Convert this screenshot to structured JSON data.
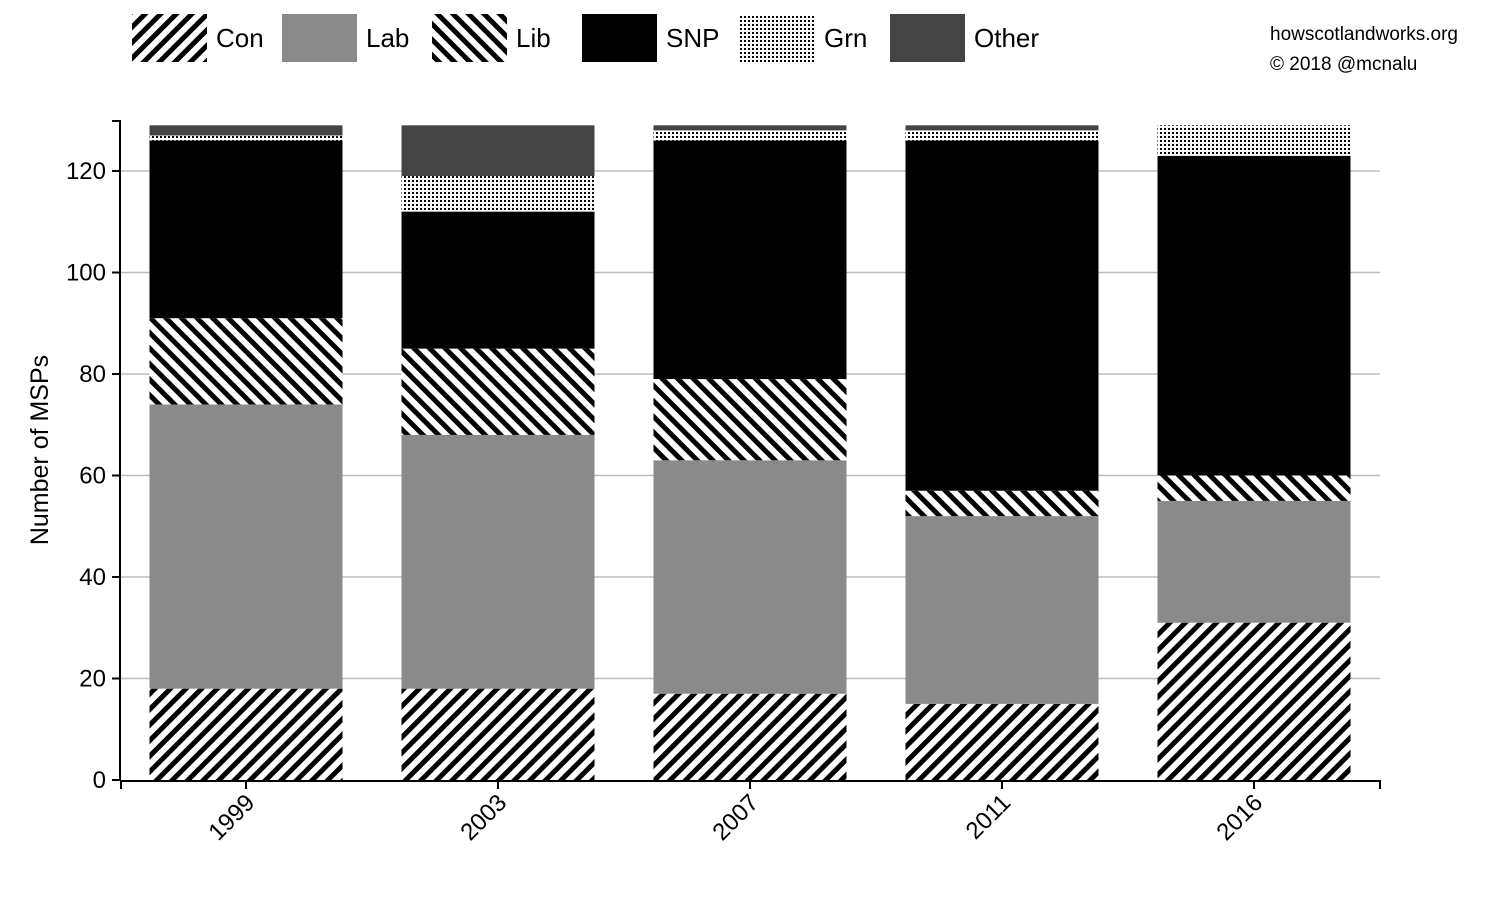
{
  "credit": {
    "site": "howscotlandworks.org",
    "copyright": "© 2018  @mcnalu"
  },
  "chart_data": {
    "type": "bar",
    "stacked": true,
    "title": "",
    "xlabel": "",
    "ylabel": "Number of MSPs",
    "ylim": [
      0,
      130
    ],
    "yticks": [
      0,
      20,
      40,
      60,
      80,
      100,
      120
    ],
    "grid": true,
    "legend_position": "top",
    "categories": [
      "1999",
      "2003",
      "2007",
      "2011",
      "2016"
    ],
    "series": [
      {
        "name": "Con",
        "pattern": "diagonal-hatch-backslash",
        "values": [
          18,
          18,
          17,
          15,
          31
        ]
      },
      {
        "name": "Lab",
        "color": "#8a8a8a",
        "values": [
          56,
          50,
          46,
          37,
          24
        ]
      },
      {
        "name": "Lib",
        "pattern": "diagonal-hatch-slash",
        "values": [
          17,
          17,
          16,
          5,
          5
        ]
      },
      {
        "name": "SNP",
        "color": "#000000",
        "values": [
          35,
          27,
          47,
          69,
          63
        ]
      },
      {
        "name": "Grn",
        "pattern": "dots",
        "values": [
          1,
          7,
          2,
          2,
          6
        ]
      },
      {
        "name": "Other",
        "color": "#444444",
        "values": [
          2,
          10,
          1,
          1,
          0
        ]
      }
    ]
  }
}
